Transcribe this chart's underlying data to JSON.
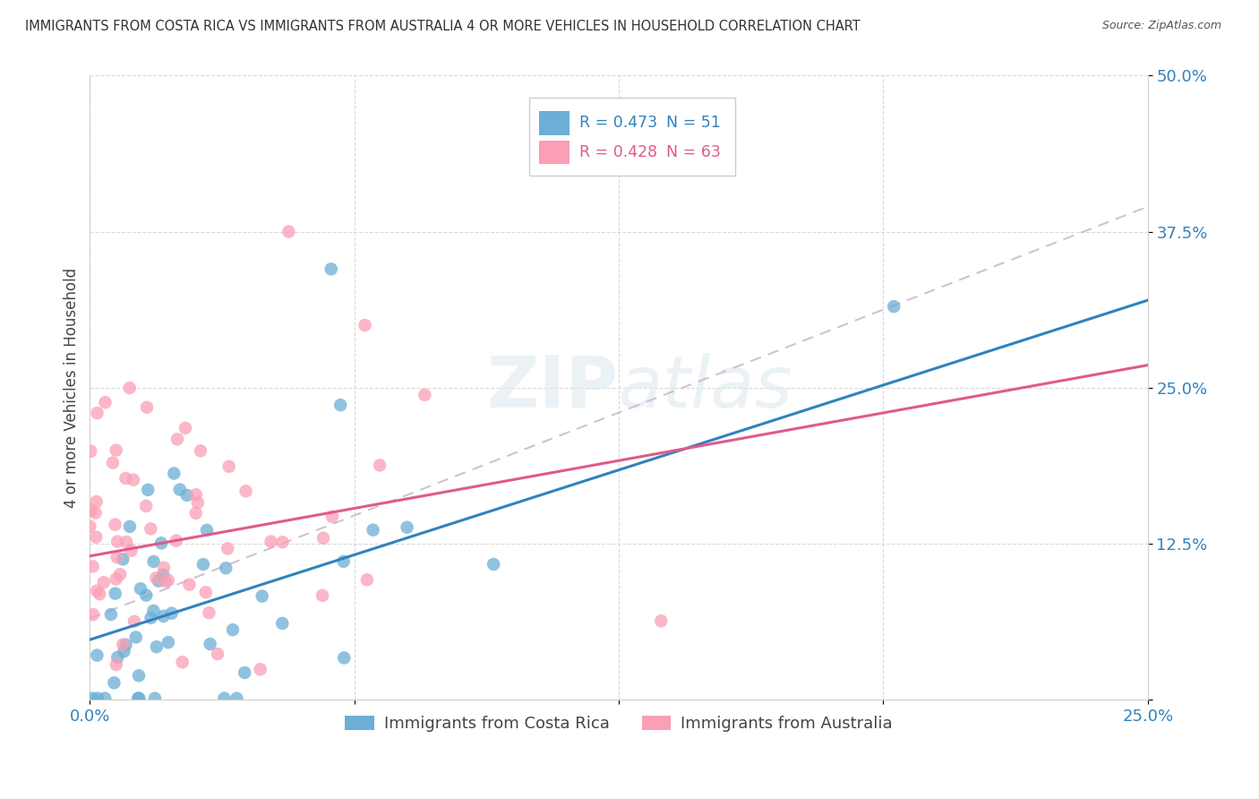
{
  "title": "IMMIGRANTS FROM COSTA RICA VS IMMIGRANTS FROM AUSTRALIA 4 OR MORE VEHICLES IN HOUSEHOLD CORRELATION CHART",
  "source": "Source: ZipAtlas.com",
  "ylabel": "4 or more Vehicles in Household",
  "xlim": [
    0.0,
    0.25
  ],
  "ylim": [
    0.0,
    0.5
  ],
  "yticks": [
    0.0,
    0.125,
    0.25,
    0.375,
    0.5
  ],
  "ytick_labels": [
    "",
    "12.5%",
    "25.0%",
    "37.5%",
    "50.0%"
  ],
  "xticks": [
    0.0,
    0.0625,
    0.125,
    0.1875,
    0.25
  ],
  "xtick_labels": [
    "0.0%",
    "",
    "",
    "",
    "25.0%"
  ],
  "color_blue": "#6baed6",
  "color_pink": "#fa9fb5",
  "color_blue_line": "#3182bd",
  "color_pink_line": "#e05a8a",
  "color_dashed": "#c8b8c8",
  "watermark": "ZIPatlas",
  "label1": "Immigrants from Costa Rica",
  "label2": "Immigrants from Australia",
  "blue_line_x0": 0.0,
  "blue_line_y0": 0.048,
  "blue_line_x1": 0.25,
  "blue_line_y1": 0.32,
  "pink_line_x0": 0.0,
  "pink_line_y0": 0.115,
  "pink_line_x1": 0.25,
  "pink_line_y1": 0.268,
  "dash_line_x0": 0.0,
  "dash_line_y0": 0.065,
  "dash_line_x1": 0.25,
  "dash_line_y1": 0.395
}
